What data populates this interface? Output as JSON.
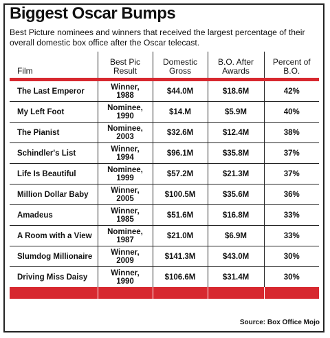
{
  "chart_data": {
    "type": "table",
    "title": "Biggest Oscar Bumps",
    "subtitle": "Best Picture nominees and winners that received the largest percentage of their overall domestic box office after the Oscar telecast.",
    "columns": [
      "Film",
      "Best Pic Result",
      "Domestic Gross",
      "B.O. After Awards",
      "Percent of B.O."
    ],
    "rows": [
      [
        "The Last Emperor",
        "Winner, 1988",
        "$44.0M",
        "$18.6M",
        "42%"
      ],
      [
        "My Left Foot",
        "Nominee, 1990",
        "$14.M",
        "$5.9M",
        "40%"
      ],
      [
        "The Pianist",
        "Nominee, 2003",
        "$32.6M",
        "$12.4M",
        "38%"
      ],
      [
        "Schindler's List",
        "Winner, 1994",
        "$96.1M",
        "$35.8M",
        "37%"
      ],
      [
        "Life Is Beautiful",
        "Nominee, 1999",
        "$57.2M",
        "$21.3M",
        "37%"
      ],
      [
        "Million Dollar Baby",
        "Winner, 2005",
        "$100.5M",
        "$35.6M",
        "36%"
      ],
      [
        "Amadeus",
        "Winner, 1985",
        "$51.6M",
        "$16.8M",
        "33%"
      ],
      [
        "A Room with a View",
        "Nominee, 1987",
        "$21.0M",
        "$6.9M",
        "33%"
      ],
      [
        "Slumdog Millionaire",
        "Winner, 2009",
        "$141.3M",
        "$43.0M",
        "30%"
      ],
      [
        "Driving Miss Daisy",
        "Winner, 1990",
        "$106.6M",
        "$31.4M",
        "30%"
      ]
    ],
    "source": "Source: Box Office Mojo",
    "accent_color": "#d7282f"
  }
}
